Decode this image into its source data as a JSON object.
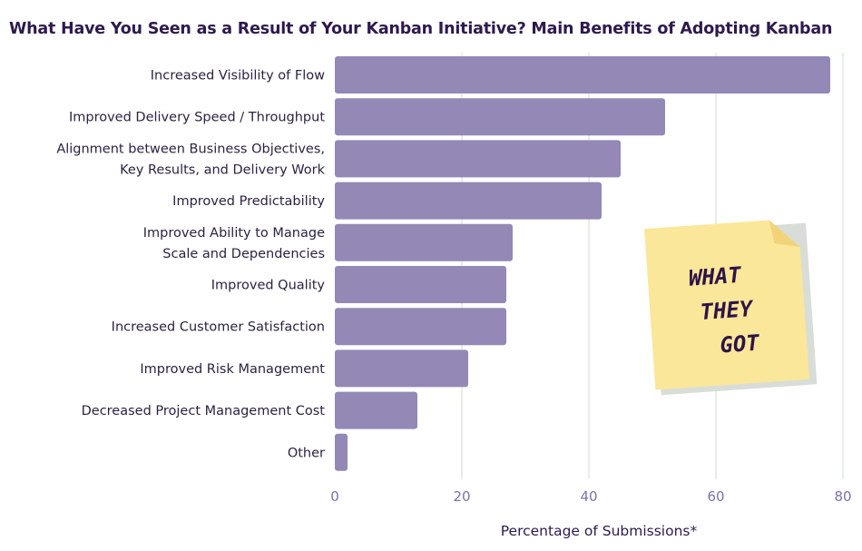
{
  "chart_data": {
    "type": "bar",
    "orientation": "horizontal",
    "title": "What Have You Seen as a Result of Your Kanban Initiative? Main Benefits of Adopting Kanban",
    "xlabel": "Percentage of Submissions*",
    "ylabel": "",
    "xlim": [
      0,
      80
    ],
    "xticks": [
      "0",
      "20",
      "40",
      "60",
      "80"
    ],
    "grid": "vertical",
    "categories": [
      [
        "Increased Visibility of Flow"
      ],
      [
        "Improved Delivery Speed / Throughput"
      ],
      [
        "Alignment between Business Objectives,",
        "Key Results, and Delivery Work"
      ],
      [
        "Improved Predictability"
      ],
      [
        "Improved Ability to Manage",
        "Scale and Dependencies"
      ],
      [
        "Improved Quality"
      ],
      [
        "Increased Customer Satisfaction"
      ],
      [
        "Improved Risk Management"
      ],
      [
        "Decreased Project Management Cost"
      ],
      [
        "Other"
      ]
    ],
    "values": [
      78,
      52,
      45,
      42,
      28,
      27,
      27,
      21,
      13,
      2
    ],
    "bar_color": "#9488b6",
    "grid_color": "#e7efe4"
  },
  "sticky_note": {
    "lines": [
      "WHAT",
      "THEY",
      "GOT"
    ],
    "color": "#fbe79a"
  }
}
